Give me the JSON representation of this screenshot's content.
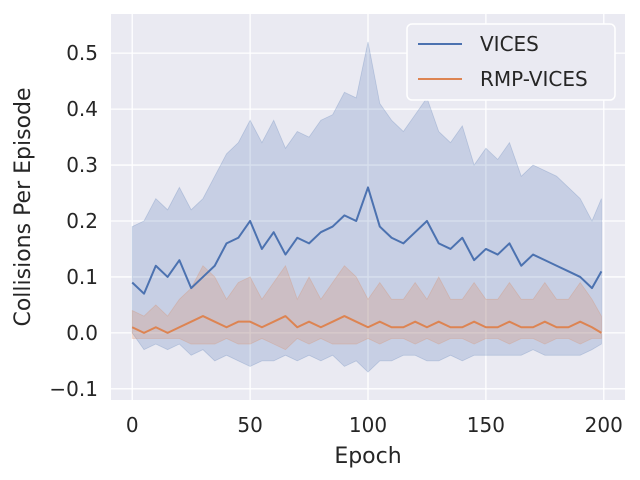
{
  "chart_data": {
    "type": "line",
    "xlabel": "Epoch",
    "ylabel": "Collisions Per Episode",
    "xlim": [
      -9,
      209
    ],
    "ylim": [
      -0.12,
      0.57
    ],
    "xticks": [
      "0",
      "50",
      "100",
      "150",
      "200"
    ],
    "yticks": [
      "−0.1",
      "0.0",
      "0.1",
      "0.2",
      "0.3",
      "0.4",
      "0.5"
    ],
    "grid": true,
    "legend_placement": "top-right",
    "series": [
      {
        "name": "VICES",
        "color": "#4c72b0",
        "x": [
          0,
          5,
          10,
          15,
          20,
          25,
          30,
          35,
          40,
          45,
          50,
          55,
          60,
          65,
          70,
          75,
          80,
          85,
          90,
          95,
          100,
          105,
          110,
          115,
          120,
          125,
          130,
          135,
          140,
          145,
          150,
          155,
          160,
          165,
          170,
          175,
          180,
          185,
          190,
          195,
          199
        ],
        "values": [
          0.09,
          0.07,
          0.12,
          0.1,
          0.13,
          0.08,
          0.1,
          0.12,
          0.16,
          0.17,
          0.2,
          0.15,
          0.18,
          0.14,
          0.17,
          0.16,
          0.18,
          0.19,
          0.21,
          0.2,
          0.26,
          0.19,
          0.17,
          0.16,
          0.18,
          0.2,
          0.16,
          0.15,
          0.17,
          0.13,
          0.15,
          0.14,
          0.16,
          0.12,
          0.14,
          0.13,
          0.12,
          0.11,
          0.1,
          0.08,
          0.11
        ],
        "band_lower": [
          0.0,
          -0.03,
          -0.02,
          -0.03,
          -0.02,
          -0.04,
          -0.03,
          -0.05,
          -0.04,
          -0.05,
          -0.06,
          -0.05,
          -0.05,
          -0.04,
          -0.05,
          -0.04,
          -0.05,
          -0.04,
          -0.06,
          -0.05,
          -0.07,
          -0.05,
          -0.05,
          -0.04,
          -0.04,
          -0.05,
          -0.05,
          -0.04,
          -0.05,
          -0.04,
          -0.04,
          -0.04,
          -0.04,
          -0.04,
          -0.03,
          -0.04,
          -0.04,
          -0.04,
          -0.04,
          -0.03,
          -0.02
        ],
        "band_upper": [
          0.19,
          0.2,
          0.24,
          0.22,
          0.26,
          0.22,
          0.24,
          0.28,
          0.32,
          0.34,
          0.38,
          0.34,
          0.38,
          0.33,
          0.36,
          0.35,
          0.38,
          0.39,
          0.43,
          0.42,
          0.52,
          0.41,
          0.38,
          0.36,
          0.39,
          0.42,
          0.36,
          0.34,
          0.37,
          0.3,
          0.33,
          0.31,
          0.34,
          0.28,
          0.3,
          0.29,
          0.28,
          0.26,
          0.24,
          0.2,
          0.24
        ]
      },
      {
        "name": "RMP-VICES",
        "color": "#dd8452",
        "x": [
          0,
          5,
          10,
          15,
          20,
          25,
          30,
          35,
          40,
          45,
          50,
          55,
          60,
          65,
          70,
          75,
          80,
          85,
          90,
          95,
          100,
          105,
          110,
          115,
          120,
          125,
          130,
          135,
          140,
          145,
          150,
          155,
          160,
          165,
          170,
          175,
          180,
          185,
          190,
          195,
          199
        ],
        "values": [
          0.01,
          0.0,
          0.01,
          0.0,
          0.01,
          0.02,
          0.03,
          0.02,
          0.01,
          0.02,
          0.02,
          0.01,
          0.02,
          0.03,
          0.01,
          0.02,
          0.01,
          0.02,
          0.03,
          0.02,
          0.01,
          0.02,
          0.01,
          0.01,
          0.02,
          0.01,
          0.02,
          0.01,
          0.01,
          0.02,
          0.01,
          0.01,
          0.02,
          0.01,
          0.01,
          0.02,
          0.01,
          0.01,
          0.02,
          0.01,
          0.0
        ],
        "band_lower": [
          -0.01,
          -0.01,
          -0.01,
          -0.01,
          -0.01,
          -0.02,
          -0.02,
          -0.02,
          -0.01,
          -0.02,
          -0.02,
          -0.01,
          -0.02,
          -0.03,
          -0.01,
          -0.02,
          -0.01,
          -0.02,
          -0.02,
          -0.02,
          -0.01,
          -0.02,
          -0.01,
          -0.01,
          -0.02,
          -0.01,
          -0.02,
          -0.01,
          -0.01,
          -0.02,
          -0.01,
          -0.01,
          -0.02,
          -0.01,
          -0.01,
          -0.02,
          -0.01,
          -0.01,
          -0.02,
          -0.01,
          -0.01
        ],
        "band_upper": [
          0.04,
          0.03,
          0.05,
          0.03,
          0.06,
          0.08,
          0.12,
          0.1,
          0.06,
          0.09,
          0.1,
          0.06,
          0.09,
          0.12,
          0.06,
          0.1,
          0.06,
          0.09,
          0.12,
          0.1,
          0.06,
          0.09,
          0.06,
          0.06,
          0.09,
          0.06,
          0.1,
          0.06,
          0.06,
          0.09,
          0.06,
          0.06,
          0.09,
          0.06,
          0.06,
          0.09,
          0.06,
          0.06,
          0.09,
          0.06,
          0.03
        ]
      }
    ]
  }
}
